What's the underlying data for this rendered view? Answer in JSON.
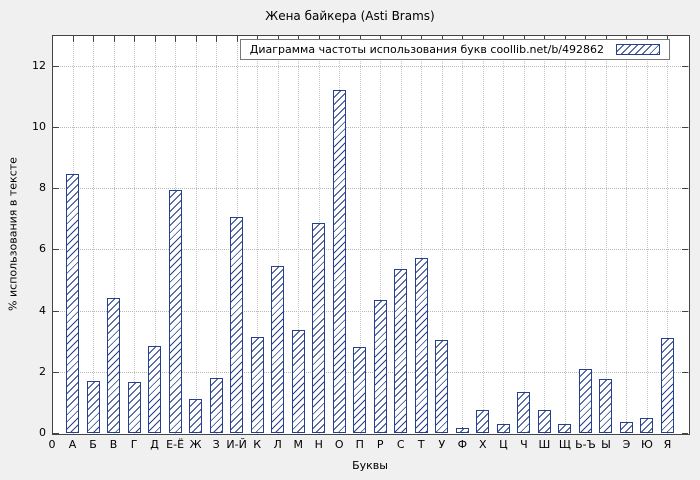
{
  "window": {
    "title": "Жена байкера (Asti Brams)"
  },
  "legend": {
    "label": "Диаграмма частоты использования букв  coollib.net/b/492862"
  },
  "chart_data": {
    "type": "bar",
    "title": "Жена байкера (Asti Brams)",
    "xlabel": "Буквы",
    "ylabel": "% использования в тексте",
    "x_origin_label": "0",
    "categories": [
      "А",
      "Б",
      "В",
      "Г",
      "Д",
      "Е-Ё",
      "Ж",
      "З",
      "И-Й",
      "К",
      "Л",
      "М",
      "Н",
      "О",
      "П",
      "Р",
      "С",
      "Т",
      "У",
      "Ф",
      "Х",
      "Ц",
      "Ч",
      "Ш",
      "Щ",
      "Ь-Ъ",
      "Ы",
      "Э",
      "Ю",
      "Я"
    ],
    "values": [
      8.45,
      1.7,
      4.4,
      1.65,
      2.85,
      7.95,
      1.1,
      1.8,
      7.05,
      3.15,
      5.45,
      3.35,
      6.85,
      11.2,
      2.8,
      4.35,
      5.35,
      5.7,
      3.05,
      0.15,
      0.75,
      0.3,
      1.35,
      0.75,
      0.3,
      2.1,
      1.75,
      0.35,
      0.5,
      3.1
    ],
    "ylim": [
      0,
      13
    ],
    "yticks": [
      0,
      2,
      4,
      6,
      8,
      10,
      12
    ],
    "grid": true,
    "legend": "Диаграмма частоты использования букв  coollib.net/b/492862",
    "legend_position": "top-right",
    "bar_fill_color": "#ffffff",
    "hatch_color": "#27408b",
    "bar_border_color": "#27408b",
    "background_color": "#f0f0f0"
  }
}
